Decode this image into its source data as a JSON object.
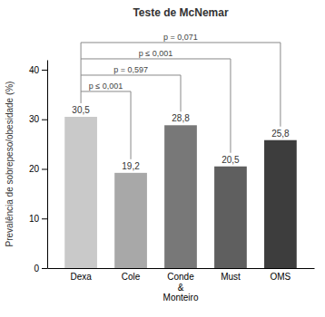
{
  "chart_data": {
    "type": "bar",
    "title": "Teste de McNemar",
    "ylabel": "Prevalência de sobrepeso/obesidade (%)",
    "categories": [
      "Dexa",
      "Cole",
      "Conde\n&\nMonteiro",
      "Must",
      "OMS"
    ],
    "values": [
      30.5,
      19.2,
      28.8,
      20.5,
      25.8
    ],
    "value_labels": [
      "30,5",
      "19,2",
      "28,8",
      "20,5",
      "25,8"
    ],
    "data_labels": true,
    "colors": [
      "#c9c9c9",
      "#a8a8a8",
      "#787878",
      "#5f5f5f",
      "#3d3d3d"
    ],
    "ylim": [
      0,
      42
    ],
    "yticks": [
      0,
      10,
      20,
      30,
      40
    ],
    "grid": false,
    "annotations": [
      {
        "text": "p ≤ 0,001",
        "from": "Dexa",
        "to": "Cole"
      },
      {
        "text": "p = 0,597",
        "from": "Dexa",
        "to": "Conde\n&\nMonteiro"
      },
      {
        "text": "p ≤ 0,001",
        "from": "Dexa",
        "to": "Must"
      },
      {
        "text": "p = 0,071",
        "from": "Dexa",
        "to": "OMS"
      }
    ]
  }
}
